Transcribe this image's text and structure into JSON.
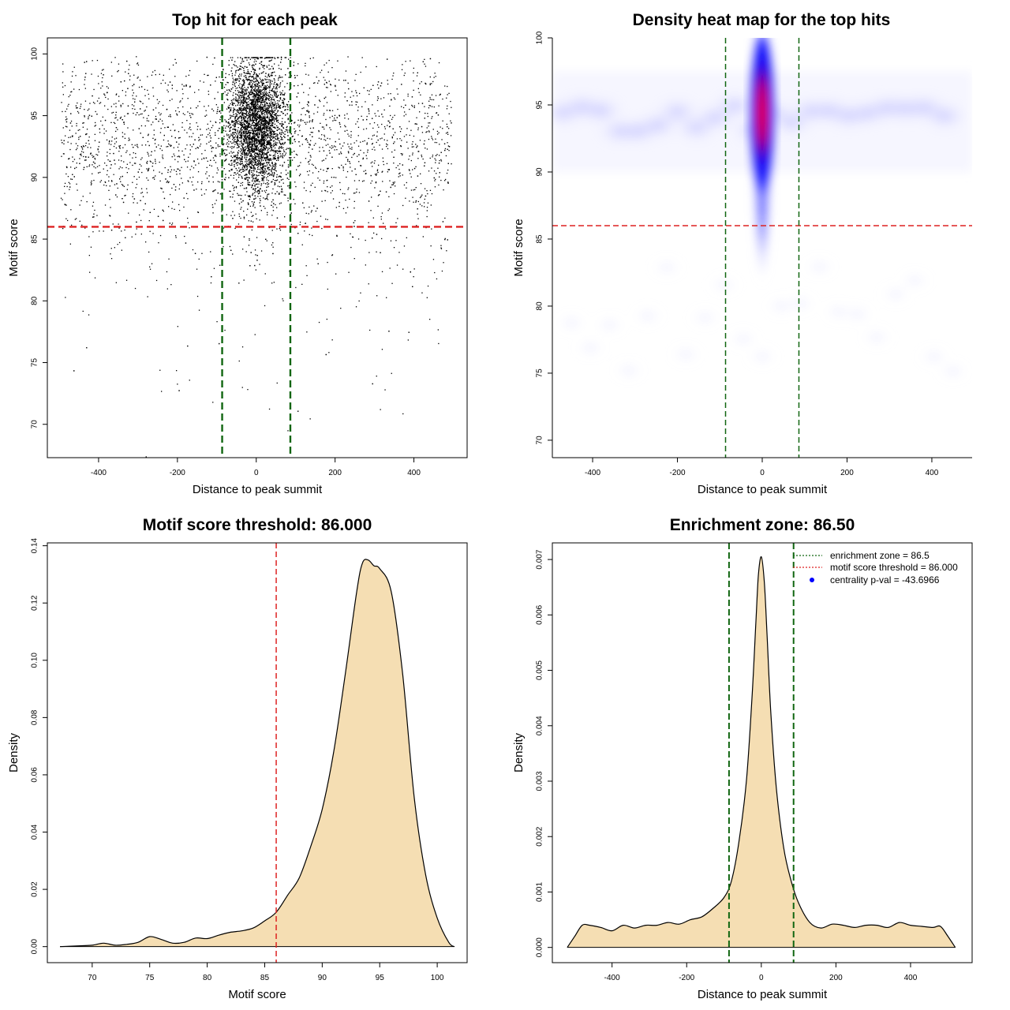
{
  "colors": {
    "points": "#000000",
    "threshold_line": "#dd2222",
    "zone_line": "#116611",
    "density_fill": "#f5deb3",
    "heat_low": "#ffffff",
    "heat_mid": "#0000ff",
    "heat_high": "#ff0000",
    "legend_marker": "#0000ff"
  },
  "chart_data": [
    {
      "id": "scatter",
      "type": "scatter",
      "title": "Top hit for each peak",
      "xlabel": "Distance to peak summit",
      "ylabel": "Motif score",
      "xlim": [
        -530,
        535
      ],
      "ylim": [
        67.3,
        101.3
      ],
      "xticks": [
        -400,
        -200,
        0,
        200,
        400
      ],
      "yticks": [
        70,
        75,
        80,
        85,
        90,
        95,
        100
      ],
      "hlines": [
        86
      ],
      "vlines": [
        -86.5,
        86.5
      ],
      "n_points_approx": 7000,
      "center_cluster": {
        "x_center": 0,
        "x_sd": 35,
        "y_center": 94.5,
        "y_sd": 2.5
      },
      "background": {
        "x_range": [
          -495,
          495
        ],
        "y_center": 93.5,
        "y_sd": 3.5
      }
    },
    {
      "id": "heatmap",
      "type": "heatmap",
      "title": "Density heat map for the top hits",
      "xlabel": "Distance to peak summit",
      "ylabel": "Motif score",
      "xlim": [
        -495,
        495
      ],
      "ylim": [
        68.7,
        100
      ],
      "xticks": [
        -400,
        -200,
        0,
        200,
        400
      ],
      "yticks": [
        70,
        75,
        80,
        85,
        90,
        95,
        100
      ],
      "hlines": [
        86
      ],
      "vlines": [
        -86.5,
        86.5
      ],
      "peak": {
        "x": 0,
        "y": 95,
        "x_sd": 18,
        "y_sd_upper": 2.5,
        "y_sd_lower": 4.5
      },
      "color_scale": [
        "white",
        "blue",
        "red"
      ]
    },
    {
      "id": "score_density",
      "type": "area",
      "title": "Motif score threshold: 86.000",
      "xlabel": "Motif score",
      "ylabel": "Density",
      "xlim": [
        66.1,
        102.6
      ],
      "ylim": [
        -0.0056,
        0.141
      ],
      "xticks": [
        70,
        75,
        80,
        85,
        90,
        95,
        100
      ],
      "yticks": [
        0.0,
        0.02,
        0.04,
        0.06,
        0.08,
        0.1,
        0.12,
        0.14
      ],
      "ytick_labels": [
        "0.00",
        "0.02",
        "0.04",
        "0.06",
        "0.08",
        "0.10",
        "0.12",
        "0.14"
      ],
      "vlines": [
        86
      ],
      "x": [
        67.2,
        69,
        70,
        71,
        72,
        73,
        74,
        75,
        76,
        77,
        78,
        79,
        80,
        81,
        82,
        83,
        84,
        85,
        86,
        87,
        88,
        89,
        90,
        91,
        92,
        93,
        93.5,
        94,
        94.5,
        95,
        96,
        97,
        98,
        99,
        100,
        101,
        101.5
      ],
      "y": [
        0.0,
        0.0003,
        0.0005,
        0.0012,
        0.0005,
        0.0008,
        0.0015,
        0.0035,
        0.0025,
        0.0012,
        0.0015,
        0.003,
        0.0028,
        0.004,
        0.005,
        0.0055,
        0.0065,
        0.009,
        0.012,
        0.018,
        0.024,
        0.035,
        0.048,
        0.068,
        0.095,
        0.124,
        0.134,
        0.135,
        0.133,
        0.132,
        0.124,
        0.095,
        0.052,
        0.025,
        0.01,
        0.0015,
        0.0
      ]
    },
    {
      "id": "distance_density",
      "type": "area",
      "title": "Enrichment zone: 86.50",
      "xlabel": "Distance to peak summit",
      "ylabel": "Density",
      "xlim": [
        -560,
        565
      ],
      "ylim": [
        -0.000275,
        0.0073
      ],
      "xticks": [
        -400,
        -200,
        0,
        200,
        400
      ],
      "yticks": [
        0.0,
        0.001,
        0.002,
        0.003,
        0.004,
        0.005,
        0.006,
        0.007
      ],
      "ytick_labels": [
        "0.000",
        "0.001",
        "0.002",
        "0.003",
        "0.004",
        "0.005",
        "0.006",
        "0.007"
      ],
      "vlines": [
        -86.5,
        86.5
      ],
      "x": [
        -520,
        -500,
        -480,
        -460,
        -430,
        -400,
        -370,
        -340,
        -310,
        -280,
        -250,
        -220,
        -190,
        -160,
        -130,
        -100,
        -80,
        -60,
        -40,
        -25,
        -15,
        -8,
        0,
        8,
        15,
        25,
        40,
        60,
        80,
        100,
        130,
        160,
        190,
        220,
        250,
        280,
        310,
        340,
        370,
        400,
        430,
        460,
        480,
        500,
        520
      ],
      "y": [
        0.0,
        0.0002,
        0.0004,
        0.0004,
        0.00036,
        0.0003,
        0.0004,
        0.00035,
        0.0004,
        0.0004,
        0.00045,
        0.00042,
        0.0005,
        0.00055,
        0.0007,
        0.0009,
        0.0012,
        0.0019,
        0.003,
        0.0045,
        0.0058,
        0.0067,
        0.00705,
        0.0066,
        0.0057,
        0.0043,
        0.0029,
        0.0018,
        0.0012,
        0.0008,
        0.00045,
        0.00035,
        0.00042,
        0.0004,
        0.00036,
        0.0004,
        0.0004,
        0.00036,
        0.00045,
        0.0004,
        0.00038,
        0.00036,
        0.00038,
        0.0002,
        0.0
      ],
      "legend": {
        "position": "top-right",
        "items": [
          {
            "label": "enrichment zone = 86.5",
            "style": "dotted-green"
          },
          {
            "label": "motif score threshold = 86.000",
            "style": "dotted-red"
          },
          {
            "label": "centrality p-val = -43.6966",
            "style": "blue-point"
          }
        ]
      }
    }
  ]
}
